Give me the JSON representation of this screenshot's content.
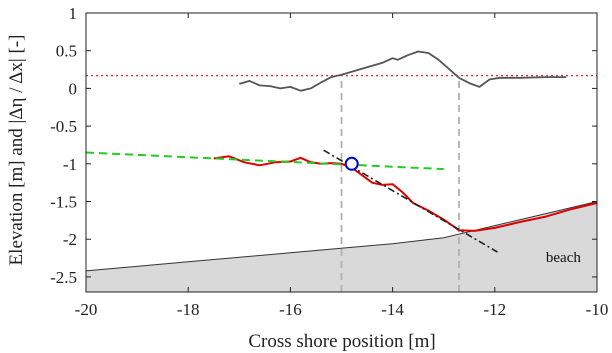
{
  "chart_data": {
    "type": "line",
    "xlabel": "Cross shore position [m]",
    "ylabel": "Elevation [m]  and  |Δη / Δx| [-]",
    "xlim": [
      -20,
      -10
    ],
    "ylim": [
      -2.7,
      1.0
    ],
    "xticks": [
      -20,
      -18,
      -16,
      -14,
      -12,
      -10
    ],
    "yticks": [
      1,
      0.5,
      0,
      -0.5,
      -1,
      -1.5,
      -2,
      -2.5
    ],
    "xtick_labels": [
      "-20",
      "-18",
      "-16",
      "-14",
      "-12",
      "-10"
    ],
    "ytick_labels": [
      "1",
      "0.5",
      "0",
      "-0.5",
      "-1",
      "-1.5",
      "-2",
      "-2.5"
    ],
    "grid": false,
    "series": [
      {
        "role": "beach-bed",
        "color": "#333333",
        "fill": "#d9d9d9",
        "x": [
          -20,
          -18,
          -16,
          -14,
          -13,
          -12.5,
          -12,
          -11,
          -10
        ],
        "y": [
          -2.42,
          -2.3,
          -2.18,
          -2.06,
          -1.98,
          -1.9,
          -1.82,
          -1.66,
          -1.5
        ]
      },
      {
        "role": "red-profile",
        "color": "#e00000",
        "x": [
          -17.5,
          -17.2,
          -16.9,
          -16.6,
          -16.3,
          -16.0,
          -15.8,
          -15.6,
          -15.4,
          -15.2,
          -15.0,
          -14.8,
          -14.6,
          -14.4,
          -14.2,
          -14.0,
          -13.8,
          -13.6,
          -13.3,
          -13.0,
          -12.7,
          -12.4,
          -12.0,
          -11.5,
          -11.0,
          -10.5,
          -10.0
        ],
        "y": [
          -0.93,
          -0.9,
          -0.98,
          -1.02,
          -0.98,
          -0.97,
          -0.92,
          -0.98,
          -1.0,
          -0.99,
          -1.0,
          -1.05,
          -1.15,
          -1.25,
          -1.28,
          -1.27,
          -1.38,
          -1.52,
          -1.62,
          -1.74,
          -1.88,
          -1.89,
          -1.85,
          -1.77,
          -1.7,
          -1.6,
          -1.52
        ]
      },
      {
        "role": "green-dashed",
        "color": "#22cc22",
        "x": [
          -20,
          -13
        ],
        "y": [
          -0.85,
          -1.07
        ]
      },
      {
        "role": "black-dash-dot",
        "color": "#222222",
        "x": [
          -15.35,
          -11.95
        ],
        "y": [
          -0.82,
          -2.17
        ]
      },
      {
        "role": "gradient-curve",
        "color": "#555555",
        "x": [
          -17.0,
          -16.8,
          -16.6,
          -16.4,
          -16.2,
          -16.0,
          -15.8,
          -15.6,
          -15.4,
          -15.2,
          -15.0,
          -14.8,
          -14.6,
          -14.4,
          -14.2,
          -14.0,
          -13.9,
          -13.7,
          -13.5,
          -13.3,
          -13.1,
          -12.9,
          -12.7,
          -12.5,
          -12.3,
          -12.1,
          -11.9,
          -11.5,
          -11.0,
          -10.6
        ],
        "y": [
          0.06,
          0.1,
          0.04,
          0.03,
          0.0,
          0.02,
          -0.03,
          0.0,
          0.08,
          0.15,
          0.18,
          0.22,
          0.26,
          0.3,
          0.34,
          0.4,
          0.38,
          0.44,
          0.49,
          0.47,
          0.38,
          0.26,
          0.14,
          0.07,
          0.02,
          0.12,
          0.14,
          0.14,
          0.15,
          0.15
        ]
      }
    ],
    "hline": {
      "y": 0.17,
      "color": "#e03030",
      "style": "dotted"
    },
    "vlines": [
      {
        "x": -15.0,
        "y_from": -2.7,
        "y_to": 0.17,
        "color": "#b0b0b0",
        "style": "dashed"
      },
      {
        "x": -12.7,
        "y_from": -2.7,
        "y_to": 0.17,
        "color": "#b0b0b0",
        "style": "dashed"
      }
    ],
    "marker": {
      "x": -14.8,
      "y": -1.0,
      "edge_color": "#0000cc",
      "face_color": "#ffffff"
    },
    "annotations": [
      {
        "text": "beach",
        "x": -11.0,
        "y": -2.3
      }
    ]
  }
}
